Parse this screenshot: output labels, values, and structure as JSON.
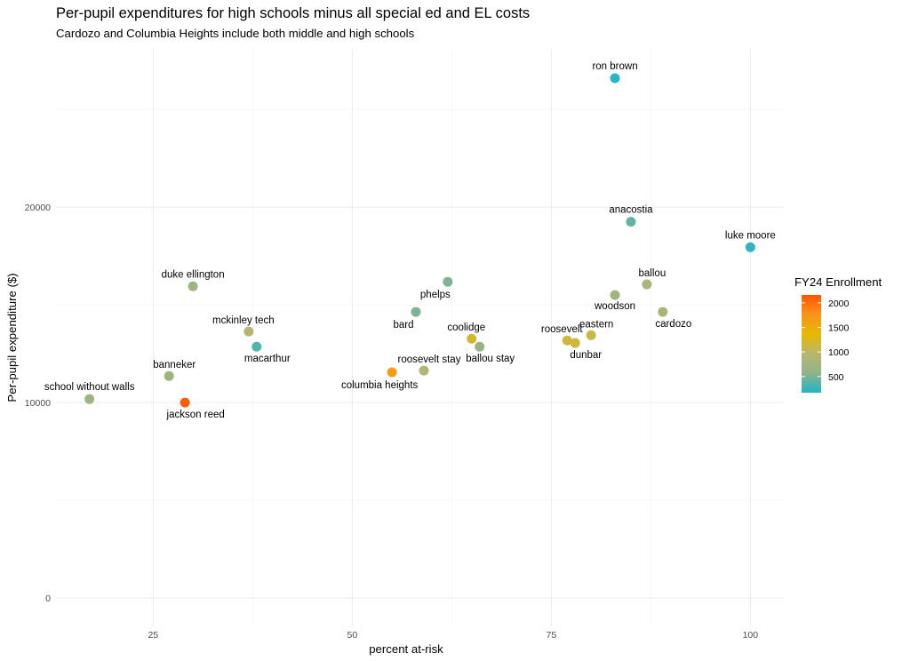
{
  "chart_data": {
    "type": "scatter",
    "title": "Per-pupil expenditures for high schools minus all special ed and EL costs",
    "subtitle": "Cardozo and Columbia Heights include both middle and high schools",
    "xlabel": "percent at-risk",
    "ylabel": "Per-pupil expenditure ($)",
    "xlim": [
      12.8,
      104.2
    ],
    "ylim": [
      -1450,
      28100
    ],
    "x_ticks": [
      25,
      50,
      75,
      100
    ],
    "x_tick_labels": [
      "25",
      "50",
      "75",
      "100"
    ],
    "x_minor_ticks": [
      37.5,
      62.5,
      87.5
    ],
    "y_ticks": [
      0,
      10000,
      20000
    ],
    "y_tick_labels": [
      "0",
      "10000",
      "20000"
    ],
    "y_minor_ticks": [
      5000,
      15000,
      25000
    ],
    "grid": true,
    "legend": {
      "title": "FY24 Enrollment",
      "placement": "right",
      "type": "colorbar",
      "range": [
        170,
        2160
      ],
      "ticks": [
        500,
        1000,
        1500,
        2000
      ],
      "tick_labels": [
        "500",
        "1000",
        "1500",
        "2000"
      ],
      "colors": [
        "#1FB5C8",
        "#8FB48A",
        "#B8B66E",
        "#E8B800",
        "#F7941D",
        "#FF5500"
      ]
    },
    "points": [
      {
        "label": "ron brown",
        "x": 83,
        "y": 26600,
        "enrollment": 200,
        "label_pos": "above"
      },
      {
        "label": "anacostia",
        "x": 85,
        "y": 19250,
        "enrollment": 400,
        "label_pos": "above"
      },
      {
        "label": "luke moore",
        "x": 100,
        "y": 17950,
        "enrollment": 220,
        "label_pos": "above"
      },
      {
        "label": "duke ellington",
        "x": 30,
        "y": 15950,
        "enrollment": 700,
        "label_pos": "above"
      },
      {
        "label": "ballou",
        "x": 87,
        "y": 16050,
        "enrollment": 850,
        "label_pos": "above-right"
      },
      {
        "label": "phelps",
        "x": 62,
        "y": 16180,
        "enrollment": 500,
        "label_pos": "below-left"
      },
      {
        "label": "woodson",
        "x": 83,
        "y": 15500,
        "enrollment": 750,
        "label_pos": "below"
      },
      {
        "label": "bard",
        "x": 58,
        "y": 14640,
        "enrollment": 500,
        "label_pos": "below-left"
      },
      {
        "label": "cardozo",
        "x": 89,
        "y": 14640,
        "enrollment": 850,
        "label_pos": "below-right"
      },
      {
        "label": "mckinley tech",
        "x": 37,
        "y": 13640,
        "enrollment": 950,
        "label_pos": "above-left"
      },
      {
        "label": "eastern",
        "x": 80,
        "y": 13450,
        "enrollment": 1100,
        "label_pos": "above-right"
      },
      {
        "label": "coolidge",
        "x": 65,
        "y": 13270,
        "enrollment": 1200,
        "label_pos": "above-left"
      },
      {
        "label": "roosevelt",
        "x": 77,
        "y": 13180,
        "enrollment": 1150,
        "label_pos": "above-left"
      },
      {
        "label": "dunbar",
        "x": 78,
        "y": 13050,
        "enrollment": 1150,
        "label_pos": "below-right"
      },
      {
        "label": "macarthur",
        "x": 38,
        "y": 12860,
        "enrollment": 350,
        "label_pos": "below-right"
      },
      {
        "label": "ballou stay",
        "x": 66,
        "y": 12860,
        "enrollment": 650,
        "label_pos": "below-right"
      },
      {
        "label": "roosevelt stay",
        "x": 59,
        "y": 11640,
        "enrollment": 900,
        "label_pos": "above-right"
      },
      {
        "label": "columbia heights",
        "x": 55,
        "y": 11550,
        "enrollment": 1650,
        "label_pos": "below-left"
      },
      {
        "label": "banneker",
        "x": 27,
        "y": 11360,
        "enrollment": 700,
        "label_pos": "above-right"
      },
      {
        "label": "school without walls",
        "x": 17,
        "y": 10180,
        "enrollment": 700,
        "label_pos": "above"
      },
      {
        "label": "jackson reed",
        "x": 29,
        "y": 10000,
        "enrollment": 2100,
        "label_pos": "below-right"
      }
    ]
  }
}
